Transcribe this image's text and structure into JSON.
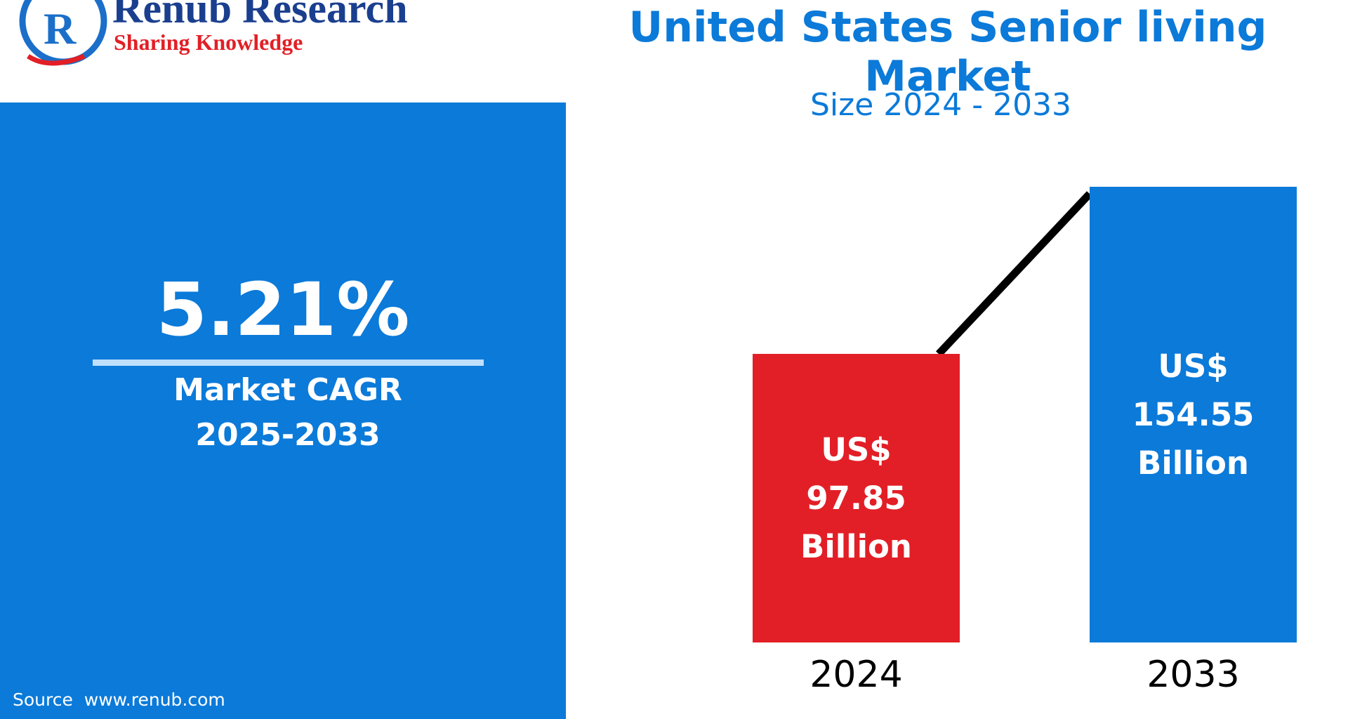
{
  "logo": {
    "name": "Renub Research",
    "tagline": "Sharing Knowledge"
  },
  "chart_data": {
    "type": "bar",
    "title": "United States Senior living Market",
    "subtitle": "Size 2024 - 2033",
    "categories": [
      "2024",
      "2033"
    ],
    "values": [
      97.85,
      154.55
    ],
    "value_labels": [
      "US$ 97.85 Billion",
      "US$ 154.55 Billion"
    ],
    "colors": [
      "#e21f26",
      "#0b7ad9"
    ],
    "kpi_value": "5.21%",
    "kpi_label": "Market CAGR 2025-2033",
    "source": "Source  www.renub.com"
  }
}
